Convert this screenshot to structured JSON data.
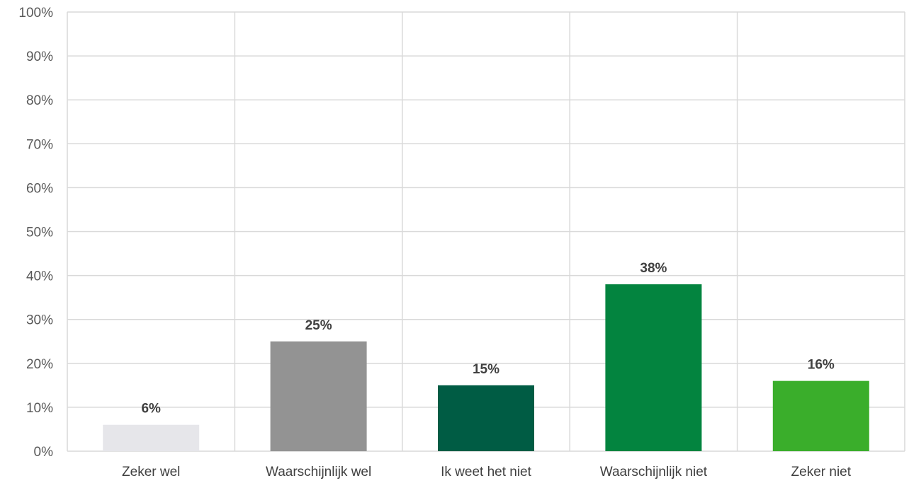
{
  "chart_data": {
    "type": "bar",
    "categories": [
      "Zeker wel",
      "Waarschijnlijk wel",
      "Ik weet het niet",
      "Waarschijnlijk niet",
      "Zeker niet"
    ],
    "values": [
      6,
      25,
      15,
      38,
      16
    ],
    "data_labels": [
      "6%",
      "25%",
      "15%",
      "38%",
      "16%"
    ],
    "bar_colors": [
      "#e6e6ea",
      "#939393",
      "#005c44",
      "#03843f",
      "#3aae2b"
    ],
    "y_ticks": [
      "0%",
      "10%",
      "20%",
      "30%",
      "40%",
      "50%",
      "60%",
      "70%",
      "80%",
      "90%",
      "100%"
    ],
    "ylim": [
      0,
      100
    ],
    "y_unit": "%",
    "grid": "horizontal and vertical",
    "legend": "none"
  }
}
